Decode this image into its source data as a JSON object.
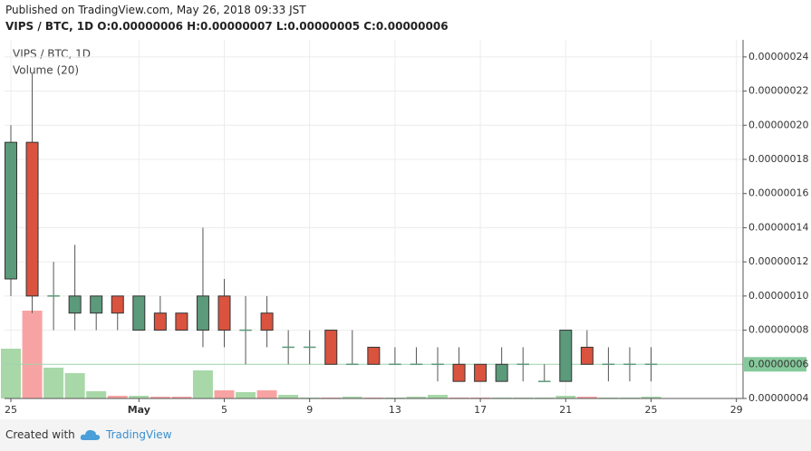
{
  "header": {
    "published": "Published on TradingView.com, May 26, 2018 09:33 JST",
    "summary": "VIPS / BTC, 1D  O:0.00000006 H:0.00000007 L:0.00000005 C:0.00000006"
  },
  "chart_data": {
    "type": "candlestick",
    "title": "VIPS / BTC, 1D",
    "volume_title": "Volume (20)",
    "categories": [
      "25",
      null,
      null,
      null,
      null,
      null,
      "May",
      null,
      null,
      null,
      "5",
      null,
      null,
      null,
      "9",
      null,
      null,
      null,
      "13",
      null,
      null,
      null,
      "17",
      null,
      null,
      null,
      "21",
      null,
      null,
      null,
      "25",
      null,
      null,
      null,
      "29"
    ],
    "open": [
      1.1e-07,
      1.9e-07,
      1e-07,
      9e-08,
      9e-08,
      1e-07,
      8e-08,
      9e-08,
      9e-08,
      8e-08,
      1e-07,
      8e-08,
      9e-08,
      7e-08,
      7e-08,
      8e-08,
      6e-08,
      7e-08,
      6e-08,
      6e-08,
      6e-08,
      6e-08,
      6e-08,
      5e-08,
      6e-08,
      5e-08,
      5e-08,
      7e-08,
      6e-08,
      6e-08,
      6e-08,
      null,
      null,
      null,
      null
    ],
    "high": [
      2e-07,
      2.3e-07,
      1.2e-07,
      1.3e-07,
      1e-07,
      1e-07,
      1e-07,
      1e-07,
      9e-08,
      1.4e-07,
      1.1e-07,
      1e-07,
      1e-07,
      8e-08,
      8e-08,
      8e-08,
      8e-08,
      7e-08,
      7e-08,
      7e-08,
      7e-08,
      7e-08,
      6e-08,
      7e-08,
      7e-08,
      6e-08,
      8e-08,
      8e-08,
      7e-08,
      7e-08,
      7e-08,
      null,
      null,
      null,
      null
    ],
    "low": [
      1e-07,
      9e-08,
      8e-08,
      8e-08,
      8e-08,
      8e-08,
      8e-08,
      8e-08,
      8e-08,
      7e-08,
      7e-08,
      6e-08,
      7e-08,
      6e-08,
      6e-08,
      6e-08,
      6e-08,
      6e-08,
      6e-08,
      6e-08,
      5e-08,
      5e-08,
      5e-08,
      5e-08,
      5e-08,
      5e-08,
      5e-08,
      6e-08,
      5e-08,
      5e-08,
      5e-08,
      null,
      null,
      null,
      null
    ],
    "close": [
      1.9e-07,
      1e-07,
      1e-07,
      1e-07,
      1e-07,
      9e-08,
      1e-07,
      8e-08,
      8e-08,
      1e-07,
      8e-08,
      8e-08,
      8e-08,
      7e-08,
      7e-08,
      6e-08,
      6e-08,
      6e-08,
      6e-08,
      6e-08,
      6e-08,
      5e-08,
      5e-08,
      6e-08,
      6e-08,
      5e-08,
      8e-08,
      6e-08,
      6e-08,
      6e-08,
      6e-08,
      null,
      null,
      null,
      null
    ],
    "volume": [
      55,
      97,
      34,
      28,
      8,
      3,
      3,
      2,
      2,
      31,
      9,
      7,
      9,
      4,
      1,
      1,
      2,
      1,
      1,
      2,
      4,
      1,
      1,
      1,
      1,
      1,
      3,
      2,
      1,
      1,
      2,
      null,
      null,
      null,
      null
    ],
    "volume_ylim": [
      0,
      396
    ],
    "up_color": "#5b9a7a",
    "down_color": "#d9533f",
    "volume_up_color": "#a8d8a8",
    "volume_down_color": "#f8a3a3",
    "ylim": [
      4e-08,
      2.5e-07
    ],
    "yticks": [
      {
        "value": 4e-08,
        "label": "0.00000004"
      },
      {
        "value": 8e-08,
        "label": "0.00000008"
      },
      {
        "value": 1e-07,
        "label": "0.00000010"
      },
      {
        "value": 1.2e-07,
        "label": "0.00000012"
      },
      {
        "value": 1.4e-07,
        "label": "0.00000014"
      },
      {
        "value": 1.6e-07,
        "label": "0.00000016"
      },
      {
        "value": 1.8e-07,
        "label": "0.00000018"
      },
      {
        "value": 2e-07,
        "label": "0.00000020"
      },
      {
        "value": 2.2e-07,
        "label": "0.00000022"
      },
      {
        "value": 2.4e-07,
        "label": "0.00000024"
      }
    ],
    "last_price": {
      "value": 6e-08,
      "label": "0.00000006"
    },
    "grid": true
  },
  "footer": {
    "created": "Created with",
    "brand": "TradingView"
  }
}
